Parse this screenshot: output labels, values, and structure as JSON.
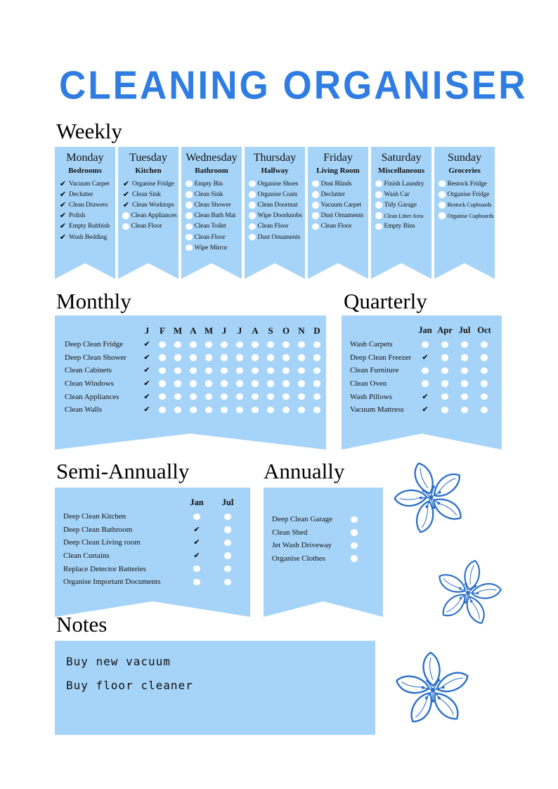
{
  "title": "CLEANING ORGANISER",
  "colors": {
    "banner": "#a6d4f8",
    "title": "#2f7de2",
    "text": "#111111",
    "check": "#000000",
    "dot": "#ffffff",
    "flower": "#2a6fc9"
  },
  "icons": {
    "check": "✔"
  },
  "weekly": {
    "heading": "Weekly",
    "days": [
      {
        "name": "Monday",
        "subtitle": "Bedrooms",
        "items": [
          {
            "label": "Vacuum Carpet",
            "checked": true
          },
          {
            "label": "Declutter",
            "checked": true
          },
          {
            "label": "Clean Drawers",
            "checked": true
          },
          {
            "label": "Polish",
            "checked": true
          },
          {
            "label": "Empty Rubbish",
            "checked": true
          },
          {
            "label": "Wash Bedding",
            "checked": true
          }
        ]
      },
      {
        "name": "Tuesday",
        "subtitle": "Kitchen",
        "items": [
          {
            "label": "Organise Fridge",
            "checked": true
          },
          {
            "label": "Clean Sink",
            "checked": true
          },
          {
            "label": "Clean Worktops",
            "checked": true
          },
          {
            "label": "Clean Appliances",
            "checked": false
          },
          {
            "label": "Clean Floor",
            "checked": false
          }
        ]
      },
      {
        "name": "Wednesday",
        "subtitle": "Bathroom",
        "items": [
          {
            "label": "Empty Bin",
            "checked": false
          },
          {
            "label": "Clean Sink",
            "checked": false
          },
          {
            "label": "Clean Shower",
            "checked": false
          },
          {
            "label": "Clean Bath Mat",
            "checked": false
          },
          {
            "label": "Clean Toilet",
            "checked": false
          },
          {
            "label": "Clean Floor",
            "checked": false
          },
          {
            "label": "Wipe Mirror",
            "checked": false
          }
        ]
      },
      {
        "name": "Thursday",
        "subtitle": "Hallway",
        "items": [
          {
            "label": "Organise Shoes",
            "checked": false
          },
          {
            "label": "Organise Coats",
            "checked": false
          },
          {
            "label": "Clean Doormat",
            "checked": false
          },
          {
            "label": "Wipe Doorknobs",
            "checked": false
          },
          {
            "label": "Clean Floor",
            "checked": false
          },
          {
            "label": "Dust Ornaments",
            "checked": false
          }
        ]
      },
      {
        "name": "Friday",
        "subtitle": "Living Room",
        "items": [
          {
            "label": "Dust Blinds",
            "checked": false
          },
          {
            "label": "Declutter",
            "checked": false
          },
          {
            "label": "Vacuum Carpet",
            "checked": false
          },
          {
            "label": "Dust Ornaments",
            "checked": false
          },
          {
            "label": "Clean Floor",
            "checked": false
          }
        ]
      },
      {
        "name": "Saturday",
        "subtitle": "Miscellaneous",
        "items": [
          {
            "label": "Finish Laundry",
            "checked": false
          },
          {
            "label": "Wash Car",
            "checked": false
          },
          {
            "label": "Tidy Garage",
            "checked": false
          },
          {
            "label": "Clean Litter Area",
            "checked": false
          },
          {
            "label": "Empty Bins",
            "checked": false
          }
        ]
      },
      {
        "name": "Sunday",
        "subtitle": "Groceries",
        "items": [
          {
            "label": "Restock Fridge",
            "checked": false
          },
          {
            "label": "Organise Fridge",
            "checked": false
          },
          {
            "label": "Restock Cupboards",
            "checked": false
          },
          {
            "label": "Organise Cupboards",
            "checked": false
          }
        ]
      }
    ]
  },
  "monthly": {
    "heading": "Monthly",
    "columns": [
      "J",
      "F",
      "M",
      "A",
      "M",
      "J",
      "J",
      "A",
      "S",
      "O",
      "N",
      "D"
    ],
    "rows": [
      {
        "label": "Deep Clean Fridge",
        "checks": [
          1,
          0,
          0,
          0,
          0,
          0,
          0,
          0,
          0,
          0,
          0,
          0
        ]
      },
      {
        "label": "Deep Clean Shower",
        "checks": [
          1,
          0,
          0,
          0,
          0,
          0,
          0,
          0,
          0,
          0,
          0,
          0
        ]
      },
      {
        "label": "Clean Cabinets",
        "checks": [
          1,
          0,
          0,
          0,
          0,
          0,
          0,
          0,
          0,
          0,
          0,
          0
        ]
      },
      {
        "label": "Clean Windows",
        "checks": [
          1,
          0,
          0,
          0,
          0,
          0,
          0,
          0,
          0,
          0,
          0,
          0
        ]
      },
      {
        "label": "Clean Appliances",
        "checks": [
          1,
          0,
          0,
          0,
          0,
          0,
          0,
          0,
          0,
          0,
          0,
          0
        ]
      },
      {
        "label": "Clean Walls",
        "checks": [
          1,
          0,
          0,
          0,
          0,
          0,
          0,
          0,
          0,
          0,
          0,
          0
        ]
      }
    ]
  },
  "quarterly": {
    "heading": "Quarterly",
    "columns": [
      "Jan",
      "Apr",
      "Jul",
      "Oct"
    ],
    "rows": [
      {
        "label": "Wash Carpets",
        "checks": [
          0,
          0,
          0,
          0
        ]
      },
      {
        "label": "Deep Clean Freezer",
        "checks": [
          1,
          0,
          0,
          0
        ]
      },
      {
        "label": "Clean Furniture",
        "checks": [
          0,
          0,
          0,
          0
        ]
      },
      {
        "label": "Clean Oven",
        "checks": [
          0,
          0,
          0,
          0
        ]
      },
      {
        "label": "Wash Pillows",
        "checks": [
          1,
          0,
          0,
          0
        ]
      },
      {
        "label": "Vacuum Mattress",
        "checks": [
          1,
          0,
          0,
          0
        ]
      }
    ]
  },
  "semi_annually": {
    "heading": "Semi-Annually",
    "columns": [
      "Jan",
      "Jul"
    ],
    "rows": [
      {
        "label": "Deep Clean Kitchen",
        "checks": [
          0,
          0
        ]
      },
      {
        "label": "Deep Clean Bathroom",
        "checks": [
          1,
          0
        ]
      },
      {
        "label": "Deep Clean Living room",
        "checks": [
          1,
          0
        ]
      },
      {
        "label": "Clean Curtains",
        "checks": [
          1,
          0
        ]
      },
      {
        "label": "Replace Detector Batteries",
        "checks": [
          0,
          0
        ]
      },
      {
        "label": "Organise Important Documents",
        "checks": [
          0,
          0
        ]
      }
    ]
  },
  "annually": {
    "heading": "Annually",
    "rows": [
      {
        "label": "Deep Clean Garage",
        "checks": [
          0
        ]
      },
      {
        "label": "Clean Shed",
        "checks": [
          0
        ]
      },
      {
        "label": "Jet Wash Driveway",
        "checks": [
          0
        ]
      },
      {
        "label": "Organise Clothes",
        "checks": [
          0
        ]
      }
    ]
  },
  "notes": {
    "heading": "Notes",
    "lines": [
      "Buy new vacuum",
      "Buy floor cleaner"
    ]
  }
}
